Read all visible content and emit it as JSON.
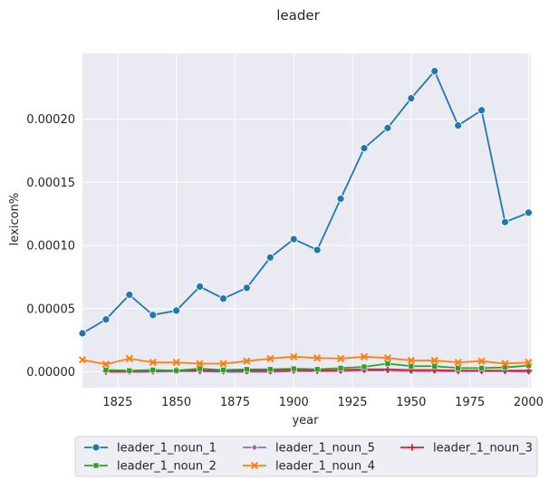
{
  "chart_data": {
    "type": "line",
    "title": "leader",
    "xlabel": "year",
    "ylabel": "lexicon%",
    "xlim": [
      1810,
      2001
    ],
    "ylim": [
      -1.25e-05,
      0.000252
    ],
    "x_ticks": [
      1825,
      1850,
      1875,
      1900,
      1925,
      1950,
      1975,
      2000
    ],
    "x_tick_labels": [
      "1825",
      "1850",
      "1875",
      "1900",
      "1925",
      "1950",
      "1975",
      "2000"
    ],
    "y_ticks": [
      0,
      5e-05,
      0.0001,
      0.00015,
      0.0002
    ],
    "y_tick_labels": [
      "0.00000",
      "0.00005",
      "0.00010",
      "0.00015",
      "0.00020"
    ],
    "grid": true,
    "legend_position": "bottom-center",
    "x": [
      1810,
      1820,
      1830,
      1840,
      1850,
      1860,
      1870,
      1880,
      1890,
      1900,
      1910,
      1920,
      1930,
      1940,
      1950,
      1960,
      1970,
      1980,
      1990,
      2000
    ],
    "series": [
      {
        "name": "leader_1_noun_1",
        "color": "#1f77b4",
        "marker": "circle",
        "x": [
          1810,
          1820,
          1830,
          1840,
          1850,
          1860,
          1870,
          1880,
          1890,
          1900,
          1910,
          1920,
          1930,
          1940,
          1950,
          1960,
          1970,
          1980,
          1990,
          2000
        ],
        "values": [
          3.05e-05,
          4.15e-05,
          6.1e-05,
          4.5e-05,
          4.85e-05,
          6.75e-05,
          5.8e-05,
          6.65e-05,
          9.05e-05,
          0.000105,
          9.65e-05,
          0.000137,
          0.000177,
          0.000193,
          0.0002165,
          0.000238,
          0.000195,
          0.000207,
          0.0001185,
          0.000126
        ]
      },
      {
        "name": "leader_1_noun_4",
        "color": "#ff7f0e",
        "marker": "x",
        "x": [
          1810,
          1820,
          1830,
          1840,
          1850,
          1860,
          1870,
          1880,
          1890,
          1900,
          1910,
          1920,
          1930,
          1940,
          1950,
          1960,
          1970,
          1980,
          1990,
          2000
        ],
        "values": [
          9.5e-06,
          6e-06,
          1.05e-05,
          7.5e-06,
          7.5e-06,
          6.5e-06,
          6.5e-06,
          8.5e-06,
          1.05e-05,
          1.2e-05,
          1.1e-05,
          1.05e-05,
          1.2e-05,
          1.1e-05,
          9e-06,
          9e-06,
          7.5e-06,
          8.5e-06,
          6.5e-06,
          7.5e-06
        ]
      },
      {
        "name": "leader_1_noun_2",
        "color": "#2ca02c",
        "marker": "square",
        "x": [
          1820,
          1830,
          1840,
          1850,
          1860,
          1870,
          1880,
          1890,
          1900,
          1910,
          1920,
          1930,
          1940,
          1950,
          1960,
          1970,
          1980,
          1990,
          2000
        ],
        "values": [
          1.5e-06,
          1e-06,
          1.5e-06,
          1e-06,
          2.5e-06,
          1.5e-06,
          2e-06,
          2e-06,
          2.5e-06,
          2e-06,
          3e-06,
          4e-06,
          6.5e-06,
          4.5e-06,
          4.5e-06,
          3e-06,
          3e-06,
          3.5e-06,
          5e-06
        ]
      },
      {
        "name": "leader_1_noun_3",
        "color": "#d62728",
        "marker": "plus",
        "x": [
          1820,
          1830,
          1840,
          1850,
          1860,
          1870,
          1880,
          1890,
          1900,
          1910,
          1920,
          1930,
          1940,
          1950,
          1960,
          1970,
          1980,
          1990,
          2000
        ],
        "values": [
          5e-07,
          5e-07,
          1e-06,
          1e-06,
          1e-06,
          1e-06,
          1e-06,
          1e-06,
          1.5e-06,
          1e-06,
          1.5e-06,
          2e-06,
          2e-06,
          1.5e-06,
          1.5e-06,
          1e-06,
          1e-06,
          1e-06,
          1e-06
        ]
      },
      {
        "name": "leader_1_noun_5",
        "color": "#9467bd",
        "marker": "diamond",
        "x": [
          1820,
          1830,
          1840,
          1850,
          1860,
          1870,
          1880,
          1890,
          1900,
          1910,
          1920,
          1930,
          1940,
          1950,
          1960,
          1970,
          1980,
          1990,
          2000
        ],
        "values": [
          0,
          0,
          0,
          5e-07,
          5e-07,
          0,
          0,
          0,
          5e-07,
          5e-07,
          5e-07,
          1e-06,
          1e-06,
          5e-07,
          5e-07,
          5e-07,
          5e-07,
          5e-07,
          0
        ]
      }
    ],
    "legend_order": [
      "leader_1_noun_1",
      "leader_1_noun_2",
      "leader_1_noun_5",
      "leader_1_noun_4",
      "leader_1_noun_3"
    ]
  }
}
